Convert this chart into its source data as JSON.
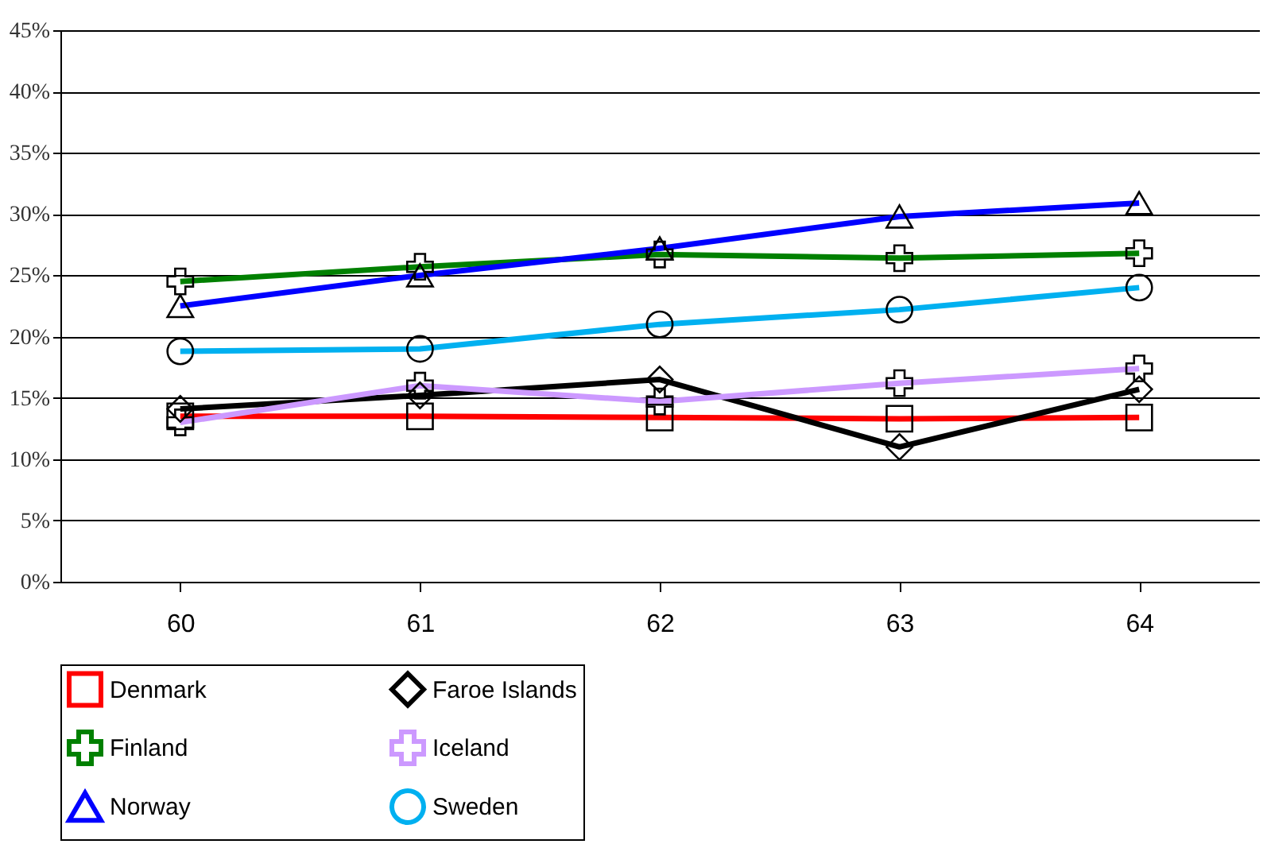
{
  "chart_data": {
    "type": "line",
    "categories": [
      "60",
      "61",
      "62",
      "63",
      "64"
    ],
    "series": [
      {
        "name": "Denmark",
        "color": "#ff0000",
        "marker": "square",
        "values": [
          13.5,
          13.5,
          13.4,
          13.3,
          13.4
        ]
      },
      {
        "name": "Faroe Islands",
        "color": "#000000",
        "marker": "diamond",
        "values": [
          14.1,
          15.2,
          16.5,
          11.0,
          15.7
        ]
      },
      {
        "name": "Finland",
        "color": "#008000",
        "marker": "cross",
        "values": [
          24.5,
          25.7,
          26.7,
          26.4,
          26.8
        ]
      },
      {
        "name": "Iceland",
        "color": "#cc99ff",
        "marker": "cross",
        "values": [
          13.0,
          16.0,
          14.7,
          16.2,
          17.4
        ]
      },
      {
        "name": "Norway",
        "color": "#0000ff",
        "marker": "triangle",
        "values": [
          22.5,
          25.0,
          27.2,
          29.8,
          30.9
        ]
      },
      {
        "name": "Sweden",
        "color": "#00b0f0",
        "marker": "circle",
        "values": [
          18.8,
          19.0,
          21.0,
          22.2,
          24.0
        ]
      }
    ],
    "ylim": [
      0,
      45
    ],
    "yticks": [
      {
        "value": 0,
        "label": "0%"
      },
      {
        "value": 5,
        "label": "5%"
      },
      {
        "value": 10,
        "label": "10%"
      },
      {
        "value": 15,
        "label": "15%"
      },
      {
        "value": 20,
        "label": "20%"
      },
      {
        "value": 25,
        "label": "25%"
      },
      {
        "value": 30,
        "label": "30%"
      },
      {
        "value": 35,
        "label": "35%"
      },
      {
        "value": 40,
        "label": "40%"
      },
      {
        "value": 45,
        "label": "45%"
      }
    ],
    "grid": "y",
    "legend": "bottom",
    "line_style": "solid"
  }
}
